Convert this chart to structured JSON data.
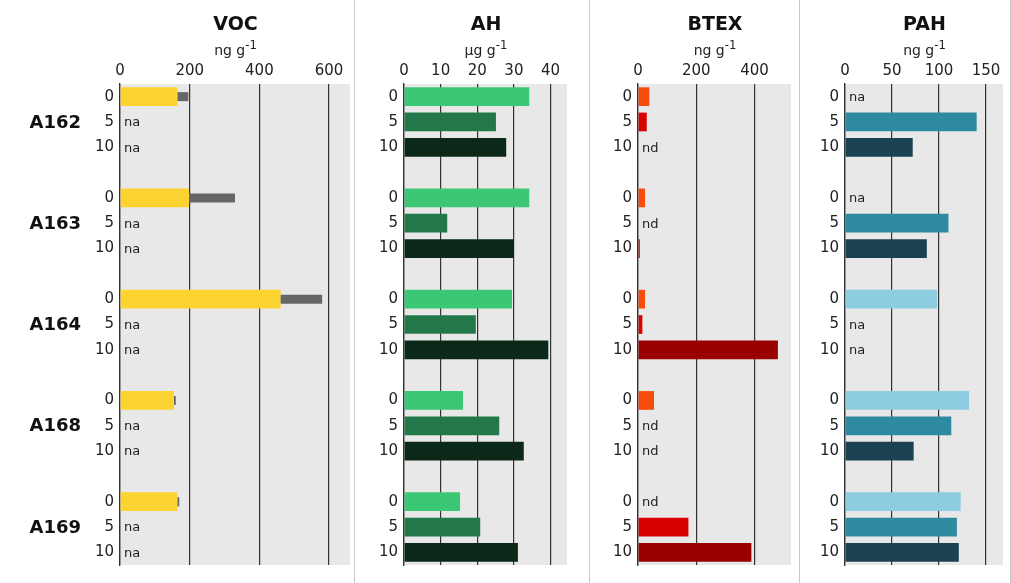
{
  "chart_data": [
    {
      "type": "bar",
      "orientation": "horizontal",
      "title": "VOC",
      "subtitle": "ng g$^{-1}$",
      "categories": [
        "0",
        "5",
        "10",
        null,
        "0",
        "5",
        "10",
        null,
        "0",
        "5",
        "10",
        null,
        "0",
        "5",
        "10",
        null,
        "0",
        "5",
        "10"
      ],
      "values": [
        165,
        null,
        null,
        null,
        198,
        null,
        null,
        null,
        461,
        null,
        null,
        null,
        155,
        null,
        null,
        null,
        165,
        null,
        null
      ],
      "errors": [
        [
          165,
          196
        ],
        null,
        null,
        null,
        [
          198,
          330
        ],
        null,
        null,
        null,
        [
          461,
          580
        ],
        null,
        null,
        null,
        [
          155,
          160
        ],
        null,
        null,
        null,
        [
          165,
          170
        ],
        null,
        null
      ],
      "value_labels": [
        null,
        "na",
        "na",
        null,
        null,
        "na",
        "na",
        null,
        null,
        "na",
        "na",
        null,
        null,
        "na",
        "na",
        null,
        null,
        "na",
        "na"
      ],
      "colors": [
        "#fdd332",
        "#fdd332",
        "#fdd332",
        "#fdd332",
        "#fdd332",
        "#fdd332",
        "#fdd332",
        "#fdd332",
        "#fdd332",
        "#fdd332",
        "#fdd332",
        "#fdd332",
        "#fdd332",
        "#fdd332",
        "#fdd332",
        "#fdd332",
        "#fdd332",
        "#fdd332",
        "#fdd332"
      ],
      "annotations": [
        "A162",
        "A163",
        "A164",
        "A168",
        "A169"
      ],
      "xlim": [
        0,
        660
      ],
      "xticks": [
        0,
        200,
        400,
        600
      ],
      "grid": "x",
      "legend": false
    },
    {
      "type": "bar",
      "orientation": "horizontal",
      "title": "AH",
      "subtitle": "μg g$^{-1}$",
      "categories": [
        "0",
        "5",
        "10",
        null,
        "0",
        "5",
        "10",
        null,
        "0",
        "5",
        "10",
        null,
        "0",
        "5",
        "10",
        null,
        "0",
        "5",
        "10"
      ],
      "values": [
        34.2,
        25.1,
        27.9,
        null,
        34.2,
        11.8,
        30.0,
        null,
        29.5,
        19.6,
        39.4,
        null,
        16.1,
        26.0,
        32.7,
        null,
        15.3,
        20.8,
        31.1
      ],
      "colors": [
        "#3cc774",
        "#23784a",
        "#0c2819",
        "#0c2819",
        "#3cc774",
        "#23784a",
        "#0c2819",
        "#0c2819",
        "#3cc774",
        "#23784a",
        "#0c2819",
        "#0c2819",
        "#3cc774",
        "#23784a",
        "#0c2819",
        "#0c2819",
        "#3cc774",
        "#23784a",
        "#0c2819"
      ],
      "xlim": [
        0,
        44.5
      ],
      "xticks": [
        0,
        10,
        20,
        30,
        40
      ],
      "grid": "x",
      "legend": false
    },
    {
      "type": "bar",
      "orientation": "horizontal",
      "title": "BTEX",
      "subtitle": "ng g$^{-1}$",
      "categories": [
        "0",
        "5",
        "10",
        null,
        "0",
        "5",
        "10",
        null,
        "0",
        "5",
        "10",
        null,
        "0",
        "5",
        "10",
        null,
        "0",
        "5",
        "10"
      ],
      "values": [
        39,
        30,
        null,
        null,
        24,
        null,
        6,
        null,
        24,
        15,
        480,
        null,
        55,
        null,
        null,
        null,
        null,
        173,
        389
      ],
      "value_labels": [
        null,
        null,
        "nd",
        null,
        null,
        "nd",
        null,
        null,
        null,
        null,
        null,
        null,
        null,
        "nd",
        "nd",
        null,
        "nd",
        null,
        null
      ],
      "colors": [
        "#f84c0c",
        "#d90000",
        "#990000",
        "#990000",
        "#f84c0c",
        "#d90000",
        "#990000",
        "#990000",
        "#f84c0c",
        "#d90000",
        "#990000",
        "#990000",
        "#f84c0c",
        "#d90000",
        "#990000",
        "#990000",
        "#f84c0c",
        "#d90000",
        "#990000"
      ],
      "xlim": [
        0,
        525
      ],
      "xticks": [
        0,
        200,
        400
      ],
      "grid": "x",
      "legend": false
    },
    {
      "type": "bar",
      "orientation": "horizontal",
      "title": "PAH",
      "subtitle": "ng g$^{-1}$",
      "categories": [
        "0",
        "5",
        "10",
        null,
        "0",
        "5",
        "10",
        null,
        "0",
        "5",
        "10",
        null,
        "0",
        "5",
        "10",
        null,
        "0",
        "5",
        "10"
      ],
      "values": [
        null,
        140,
        72,
        null,
        null,
        110,
        87,
        null,
        98,
        null,
        null,
        null,
        132,
        113,
        73,
        null,
        123,
        119,
        121
      ],
      "value_labels": [
        "na",
        null,
        null,
        null,
        "na",
        null,
        null,
        null,
        null,
        "na",
        "na",
        null,
        null,
        null,
        null,
        null,
        null,
        null,
        null
      ],
      "colors": [
        "#8ccde0",
        "#2e8aa0",
        "#1b4250",
        "#1b4250",
        "#8ccde0",
        "#2e8aa0",
        "#1b4250",
        "#1b4250",
        "#8ccde0",
        "#2e8aa0",
        "#1b4250",
        "#1b4250",
        "#8ccde0",
        "#2e8aa0",
        "#1b4250",
        "#1b4250",
        "#8ccde0",
        "#2e8aa0",
        "#1b4250"
      ],
      "xlim": [
        0,
        168
      ],
      "xticks": [
        0,
        50,
        100,
        150
      ],
      "grid": "x",
      "legend": false
    }
  ]
}
